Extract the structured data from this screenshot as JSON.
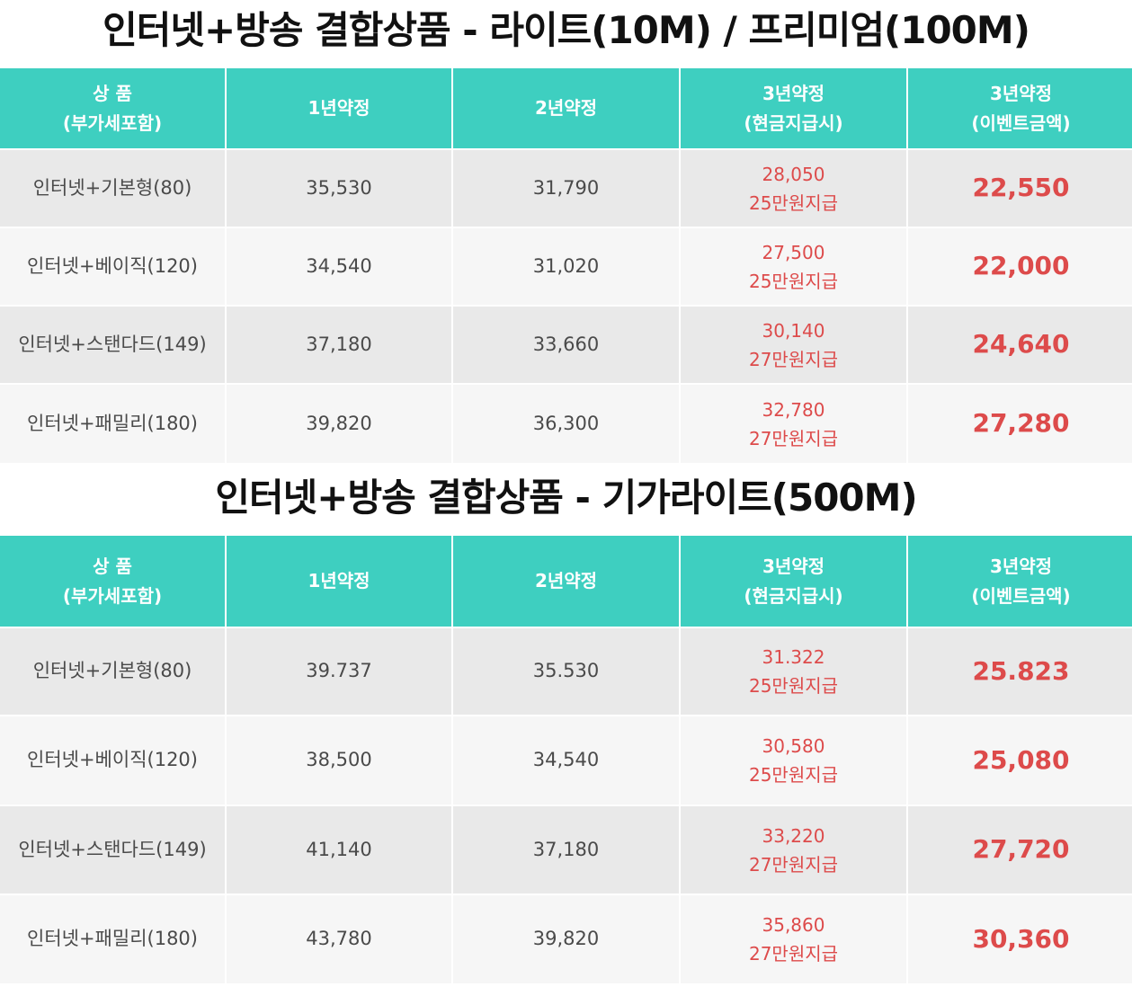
{
  "tables": [
    {
      "title": "인터넷+방송 결합상품 - 라이트(10M) / 프리미엄(100M)",
      "header": {
        "product": [
          "상 품",
          "(부가세포함)"
        ],
        "year1": "1년약정",
        "year2": "2년약정",
        "year3_cash": [
          "3년약정",
          "(현금지급시)"
        ],
        "year3_event": [
          "3년약정",
          "(이벤트금액)"
        ]
      },
      "rows": [
        {
          "product": "인터넷+기본형(80)",
          "year1": "35,530",
          "year2": "31,790",
          "year3_cash_price": "28,050",
          "year3_cash_gift": "25만원지급",
          "year3_event": "22,550"
        },
        {
          "product": "인터넷+베이직(120)",
          "year1": "34,540",
          "year2": "31,020",
          "year3_cash_price": "27,500",
          "year3_cash_gift": "25만원지급",
          "year3_event": "22,000"
        },
        {
          "product": "인터넷+스탠다드(149)",
          "year1": "37,180",
          "year2": "33,660",
          "year3_cash_price": "30,140",
          "year3_cash_gift": "27만원지급",
          "year3_event": "24,640"
        },
        {
          "product": "인터넷+패밀리(180)",
          "year1": "39,820",
          "year2": "36,300",
          "year3_cash_price": "32,780",
          "year3_cash_gift": "27만원지급",
          "year3_event": "27,280"
        }
      ]
    },
    {
      "title": "인터넷+방송 결합상품 - 기가라이트(500M)",
      "header": {
        "product": [
          "상 품",
          "(부가세포함)"
        ],
        "year1": "1년약정",
        "year2": "2년약정",
        "year3_cash": [
          "3년약정",
          "(현금지급시)"
        ],
        "year3_event": [
          "3년약정",
          "(이벤트금액)"
        ]
      },
      "rows": [
        {
          "product": "인터넷+기본형(80)",
          "year1": "39.737",
          "year2": "35.530",
          "year3_cash_price": "31.322",
          "year3_cash_gift": "25만원지급",
          "year3_event": "25.823"
        },
        {
          "product": "인터넷+베이직(120)",
          "year1": "38,500",
          "year2": "34,540",
          "year3_cash_price": "30,580",
          "year3_cash_gift": "25만원지급",
          "year3_event": "25,080"
        },
        {
          "product": "인터넷+스탠다드(149)",
          "year1": "41,140",
          "year2": "37,180",
          "year3_cash_price": "33,220",
          "year3_cash_gift": "27만원지급",
          "year3_event": "27,720"
        },
        {
          "product": "인터넷+패밀리(180)",
          "year1": "43,780",
          "year2": "39,820",
          "year3_cash_price": "35,860",
          "year3_cash_gift": "27만원지급",
          "year3_event": "30,360"
        }
      ]
    }
  ],
  "colors": {
    "header_bg": "#3ecfc0",
    "row_dark": "#e9e9e9",
    "row_light": "#f6f6f6",
    "highlight_red": "#dd4b4b",
    "text_gray": "#4a4a4a"
  }
}
